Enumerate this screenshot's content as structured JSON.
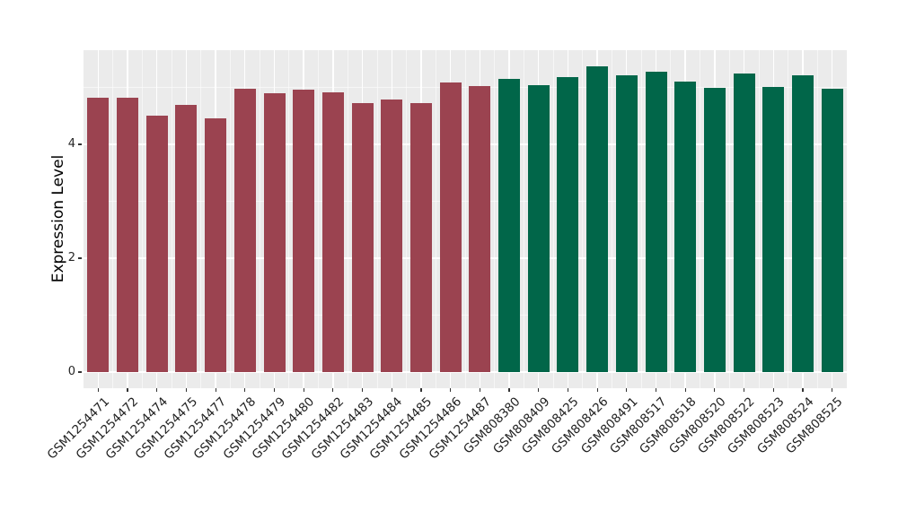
{
  "chart_data": {
    "type": "bar",
    "title": "",
    "xlabel": "",
    "ylabel": "Expression Level",
    "ylim": [
      0,
      5.65
    ],
    "yticks": [
      0,
      2,
      4
    ],
    "minor_gridlines": [
      1,
      3,
      5
    ],
    "grid": "on",
    "legend": "none",
    "panel_background": "#EBEBEB",
    "group_colors": {
      "maroon": "#9B4350",
      "green": "#016649"
    },
    "categories": [
      "GSM1254471",
      "GSM1254472",
      "GSM1254474",
      "GSM1254475",
      "GSM1254477",
      "GSM1254478",
      "GSM1254479",
      "GSM1254480",
      "GSM1254482",
      "GSM1254483",
      "GSM1254484",
      "GSM1254485",
      "GSM1254486",
      "GSM1254487",
      "GSM808380",
      "GSM808409",
      "GSM808425",
      "GSM808426",
      "GSM808491",
      "GSM808517",
      "GSM808518",
      "GSM808520",
      "GSM808522",
      "GSM808523",
      "GSM808524",
      "GSM808525"
    ],
    "values": [
      4.82,
      4.82,
      4.51,
      4.69,
      4.46,
      4.97,
      4.89,
      4.96,
      4.91,
      4.72,
      4.79,
      4.72,
      5.08,
      5.03,
      5.15,
      5.04,
      5.18,
      5.37,
      5.22,
      5.28,
      5.1,
      4.99,
      5.24,
      5.0,
      5.21,
      4.97
    ],
    "groups": [
      "maroon",
      "maroon",
      "maroon",
      "maroon",
      "maroon",
      "maroon",
      "maroon",
      "maroon",
      "maroon",
      "maroon",
      "maroon",
      "maroon",
      "maroon",
      "maroon",
      "green",
      "green",
      "green",
      "green",
      "green",
      "green",
      "green",
      "green",
      "green",
      "green",
      "green",
      "green"
    ]
  }
}
